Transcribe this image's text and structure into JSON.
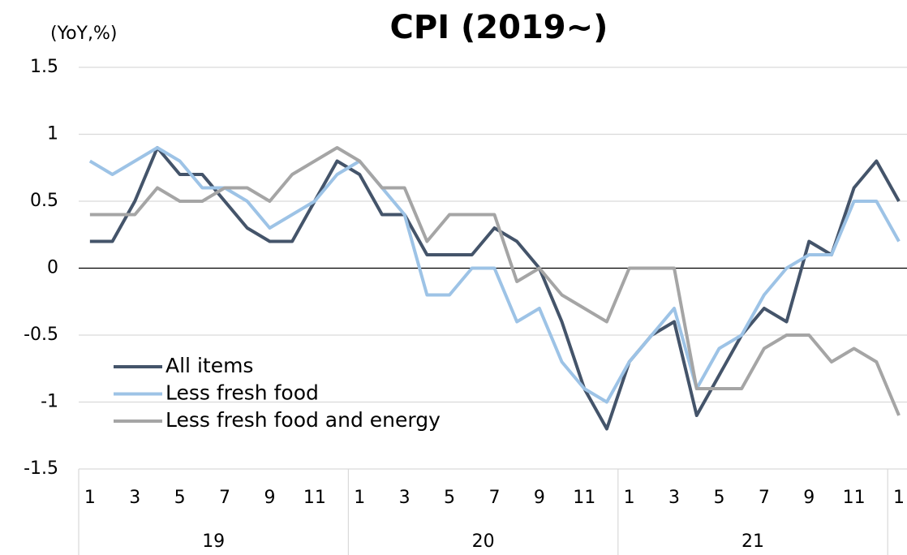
{
  "chart_data": {
    "type": "line",
    "title": "CPI (2019~)",
    "y_label": "(YoY,%)",
    "categories": [
      "1",
      null,
      "3",
      null,
      "5",
      null,
      "7",
      null,
      "9",
      null,
      "11",
      null,
      "1",
      null,
      "3",
      null,
      "5",
      null,
      "7",
      null,
      "9",
      null,
      "11",
      null,
      "1",
      null,
      "3",
      null,
      "5",
      null,
      "7",
      null,
      "9",
      null,
      "11",
      null,
      "1"
    ],
    "groups": [
      "19",
      "20",
      "21"
    ],
    "series": [
      {
        "name": "All items",
        "color": "#44546a",
        "values": [
          0.2,
          0.2,
          0.5,
          0.9,
          0.7,
          0.7,
          0.5,
          0.3,
          0.2,
          0.2,
          0.5,
          0.8,
          0.7,
          0.4,
          0.4,
          0.1,
          0.1,
          0.1,
          0.3,
          0.2,
          0.0,
          -0.4,
          -0.9,
          -1.2,
          -0.7,
          -0.5,
          -0.4,
          -1.1,
          -0.8,
          -0.5,
          -0.3,
          -0.4,
          0.2,
          0.1,
          0.6,
          0.8,
          0.5
        ]
      },
      {
        "name": "Less fresh food",
        "color": "#9dc3e6",
        "values": [
          0.8,
          0.7,
          0.8,
          0.9,
          0.8,
          0.6,
          0.6,
          0.5,
          0.3,
          0.4,
          0.5,
          0.7,
          0.8,
          0.6,
          0.4,
          -0.2,
          -0.2,
          0.0,
          0.0,
          -0.4,
          -0.3,
          -0.7,
          -0.9,
          -1.0,
          -0.7,
          -0.5,
          -0.3,
          -0.9,
          -0.6,
          -0.5,
          -0.2,
          0.0,
          0.1,
          0.1,
          0.5,
          0.5,
          0.2
        ]
      },
      {
        "name": "Less fresh food and energy",
        "color": "#a5a5a5",
        "values": [
          0.4,
          0.4,
          0.4,
          0.6,
          0.5,
          0.5,
          0.6,
          0.6,
          0.5,
          0.7,
          0.8,
          0.9,
          0.8,
          0.6,
          0.6,
          0.2,
          0.4,
          0.4,
          0.4,
          -0.1,
          0.0,
          -0.2,
          -0.3,
          -0.4,
          0.0,
          0.0,
          0.0,
          -0.9,
          -0.9,
          -0.9,
          -0.6,
          -0.5,
          -0.5,
          -0.7,
          -0.6,
          -0.7,
          -1.1
        ]
      }
    ],
    "ylim": [
      -1.5,
      1.5
    ],
    "yticks": [
      1.5,
      1,
      0.5,
      0,
      -0.5,
      -1,
      -1.5
    ],
    "grid": true
  }
}
